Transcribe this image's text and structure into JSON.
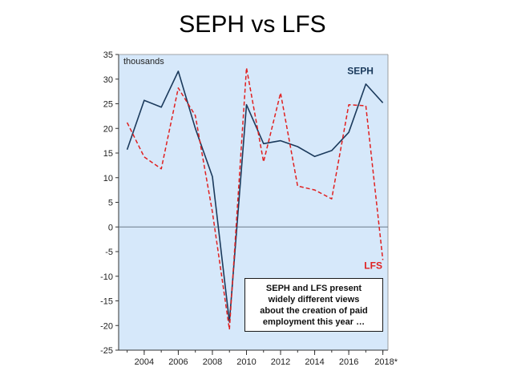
{
  "slide": {
    "title": "SEPH vs LFS"
  },
  "chart_data": {
    "type": "line",
    "title": "SEPH vs LFS",
    "ylabel": "thousands",
    "xlabel": "",
    "ylim": [
      -25,
      35
    ],
    "xlim": [
      2002.5,
      2018.3
    ],
    "yticks": [
      -25,
      -20,
      -15,
      -10,
      -5,
      0,
      5,
      10,
      15,
      20,
      25,
      30,
      35
    ],
    "xticks": [
      2004,
      2006,
      2008,
      2010,
      2012,
      2014,
      2016,
      2018
    ],
    "xtick_labels": [
      "2004",
      "2006",
      "2008",
      "2010",
      "2012",
      "2014",
      "2016",
      "2018*"
    ],
    "grid": false,
    "background": "#d6e8fa",
    "zero_line": true,
    "x": [
      2003,
      2004,
      2005,
      2006,
      2007,
      2008,
      2009,
      2010,
      2011,
      2012,
      2013,
      2014,
      2015,
      2016,
      2017,
      2018
    ],
    "series": [
      {
        "name": "SEPH",
        "color": "#1b3a5c",
        "style": "solid",
        "values": [
          15.7,
          25.7,
          24.3,
          31.6,
          20.0,
          10.2,
          -19.3,
          24.8,
          16.9,
          17.5,
          16.3,
          14.3,
          15.5,
          19.2,
          29.0,
          25.2
        ]
      },
      {
        "name": "LFS",
        "color": "#e02020",
        "style": "dashed",
        "values": [
          21.2,
          14.2,
          11.8,
          28.2,
          22.6,
          3.0,
          -20.8,
          32.3,
          13.2,
          27.2,
          8.3,
          7.5,
          5.7,
          24.8,
          24.6,
          -6.7
        ]
      }
    ],
    "annotation": {
      "lines": [
        "SEPH and LFS present",
        "widely different views",
        "about the creation of paid",
        "employment this year …"
      ]
    }
  }
}
